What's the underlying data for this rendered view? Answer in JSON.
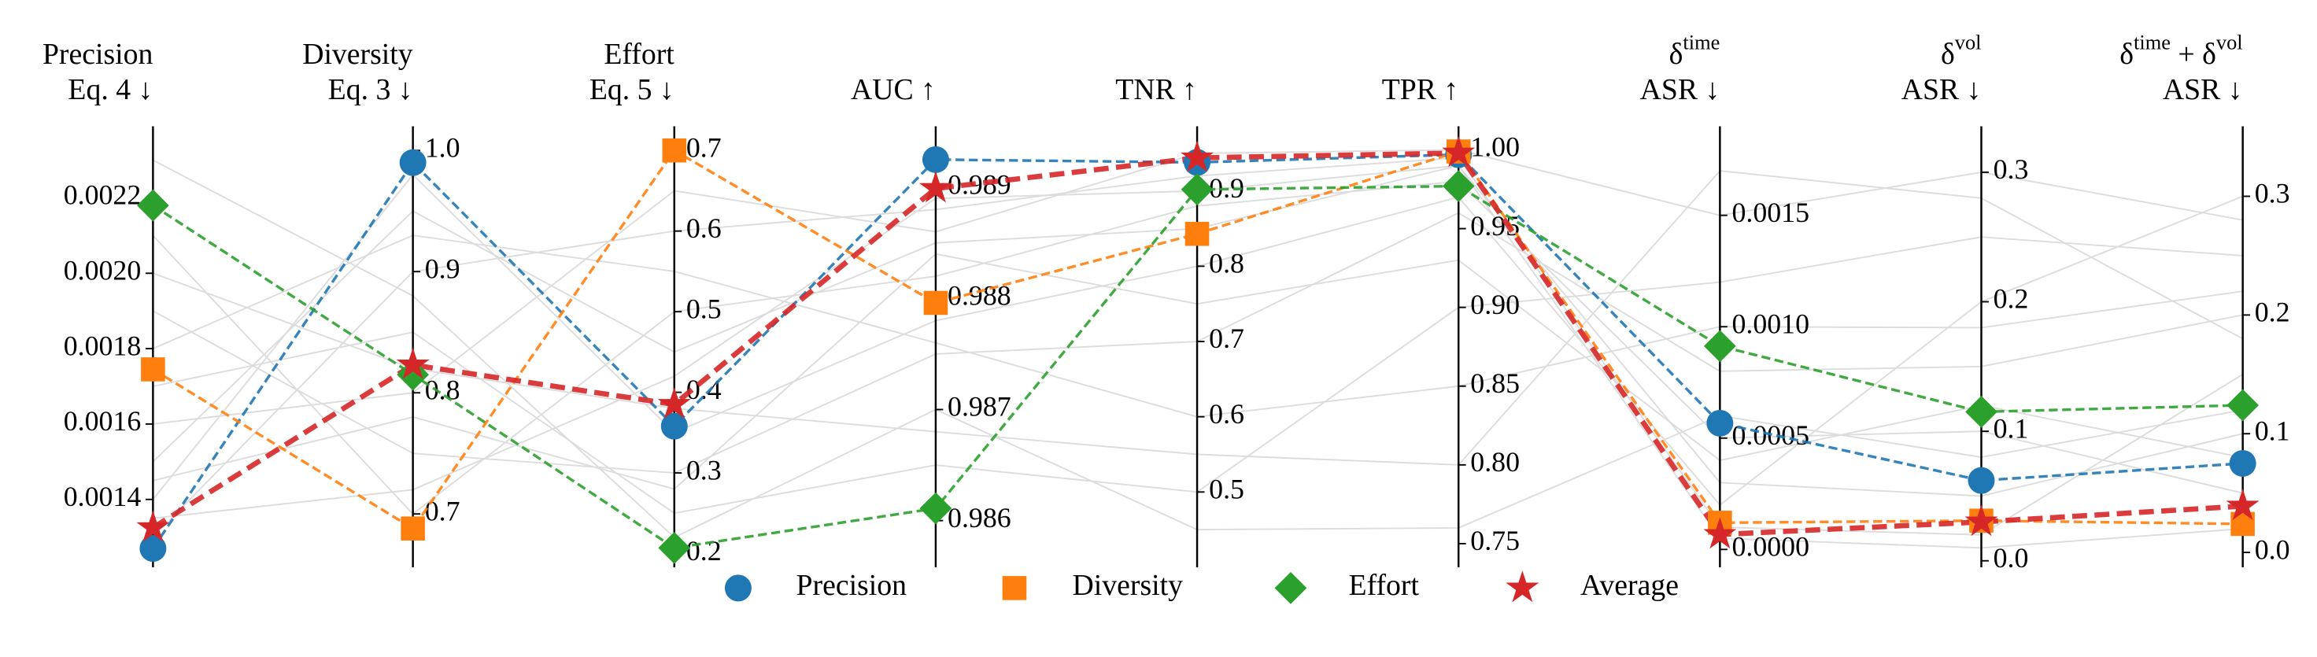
{
  "chart_data": {
    "type": "parallel",
    "axes": [
      {
        "label": [
          [
            "Precision"
          ],
          [
            "Eq. 4 ↓"
          ]
        ],
        "tick_side": "left",
        "ylim": [
          0.00122,
          0.00239
        ],
        "yticks": [
          0.0014,
          0.0016,
          0.0018,
          {
            "value": 0.002,
            "label": "0.0020"
          },
          0.0022
        ]
      },
      {
        "label": [
          [
            "Diversity"
          ],
          [
            "Eq. 3 ↓"
          ]
        ],
        "tick_side": "right",
        "ylim": [
          0.656,
          1.02
        ],
        "yticks": [
          0.7,
          0.8,
          0.9,
          {
            "value": 1,
            "label": "1.0"
          }
        ]
      },
      {
        "label": [
          [
            "Effort"
          ],
          [
            "Eq. 5 ↓"
          ]
        ],
        "tick_side": "right",
        "ylim": [
          0.183,
          0.73
        ],
        "yticks": [
          0.2,
          0.3,
          0.4,
          0.5,
          0.6,
          0.7
        ]
      },
      {
        "label": [
          [
            "AUC ↑"
          ]
        ],
        "tick_side": "right",
        "ylim": [
          0.98558,
          0.98955
        ],
        "yticks": [
          0.986,
          0.987,
          0.988,
          0.989
        ]
      },
      {
        "label": [
          [
            "TNR ↑"
          ]
        ],
        "tick_side": "right",
        "ylim": [
          0.4,
          0.986
        ],
        "yticks": [
          0.5,
          0.6,
          0.7,
          0.8,
          0.9
        ]
      },
      {
        "label": [
          [
            "TPR ↑"
          ]
        ],
        "tick_side": "right",
        "ylim": [
          0.735,
          1.015
        ],
        "yticks": [
          0.75,
          {
            "value": 0.8,
            "label": "0.80"
          },
          0.85,
          {
            "value": 0.9,
            "label": "0.90"
          },
          0.95,
          {
            "value": 1,
            "label": "1.00"
          }
        ]
      },
      {
        "label": [
          [
            "δ",
            "time"
          ],
          [
            "ASR ↓"
          ]
        ],
        "tick_side": "right",
        "ylim": [
          -8e-05,
          0.0019
        ],
        "yticks": [
          {
            "value": 0,
            "label": "0.0000"
          },
          0.0005,
          {
            "value": 0.001,
            "label": "0.0010"
          },
          0.0015
        ]
      },
      {
        "label": [
          [
            "δ",
            "vol"
          ],
          [
            "ASR ↓"
          ]
        ],
        "tick_side": "right",
        "ylim": [
          -0.005,
          0.3355
        ],
        "yticks": [
          {
            "value": 0,
            "label": "0.0"
          },
          0.1,
          0.2,
          0.3
        ]
      },
      {
        "label": [
          [
            "δ",
            "time",
            " + δ",
            "vol"
          ],
          [
            "ASR ↓"
          ]
        ],
        "tick_side": "right",
        "ylim": [
          -0.0125,
          0.359
        ],
        "yticks": [
          {
            "value": 0,
            "label": "0.0"
          },
          0.1,
          0.2,
          0.3
        ]
      }
    ],
    "series": [
      {
        "name": "Precision",
        "color": "#1f77b4",
        "marker": "circle",
        "values": [
          0.00127,
          0.99,
          0.358,
          0.98925,
          0.938,
          0.997,
          0.000567,
          0.062,
          0.075
        ]
      },
      {
        "name": "Diversity",
        "color": "#ff7f0e",
        "marker": "square",
        "values": [
          0.001745,
          0.688,
          0.7,
          0.98796,
          0.843,
          0.999,
          0.00012,
          0.031,
          0.024
        ]
      },
      {
        "name": "Effort",
        "color": "#2ca02c",
        "marker": "diamond",
        "values": [
          0.00218,
          0.815,
          0.207,
          0.98611,
          0.902,
          0.977,
          0.000913,
          0.115,
          0.124
        ]
      },
      {
        "name": "Average",
        "color": "#d62728",
        "marker": "star",
        "values": [
          0.001325,
          0.823,
          0.385,
          0.98899,
          0.944,
          0.998,
          6.7e-05,
          0.03,
          0.039
        ]
      }
    ],
    "background_color": "#dcdcdc",
    "background": [
      [
        0.0015,
        0.95,
        0.45,
        0.9885,
        0.85,
        0.99,
        0.0003,
        0.05,
        0.1
      ],
      [
        0.0019,
        0.75,
        0.3,
        0.9875,
        0.7,
        0.96,
        0.0008,
        0.15,
        0.2
      ],
      [
        0.0013,
        0.9,
        0.6,
        0.9888,
        0.92,
        0.995,
        0.0001,
        0.02,
        0.15
      ],
      [
        0.0017,
        0.85,
        0.25,
        0.9865,
        0.5,
        0.9,
        0.0012,
        0.25,
        0.25
      ],
      [
        0.0021,
        0.7,
        0.5,
        0.9882,
        0.88,
        0.98,
        0.0005,
        0.1,
        0.05
      ],
      [
        0.0014,
        0.98,
        0.35,
        0.9878,
        0.8,
        0.97,
        0.0002,
        0.2,
        0.3
      ],
      [
        0.0016,
        0.8,
        0.65,
        0.9886,
        0.95,
        1.0,
        0.0015,
        0.3,
        0.28
      ],
      [
        0.0023,
        0.88,
        0.22,
        0.987,
        0.45,
        0.76,
        0.0006,
        0.08,
        0.12
      ],
      [
        0.00135,
        0.72,
        0.42,
        0.9889,
        0.9,
        0.99,
        5e-05,
        0.01,
        0.02
      ],
      [
        0.0018,
        0.93,
        0.55,
        0.9876,
        0.6,
        0.85,
        0.001,
        0.18,
        0.22
      ],
      [
        0.00145,
        0.78,
        0.28,
        0.9884,
        0.75,
        0.93,
        0.0004,
        0.12,
        0.08
      ],
      [
        0.002,
        0.82,
        0.38,
        0.9868,
        0.55,
        0.8,
        0.0017,
        0.28,
        0.18
      ]
    ]
  }
}
